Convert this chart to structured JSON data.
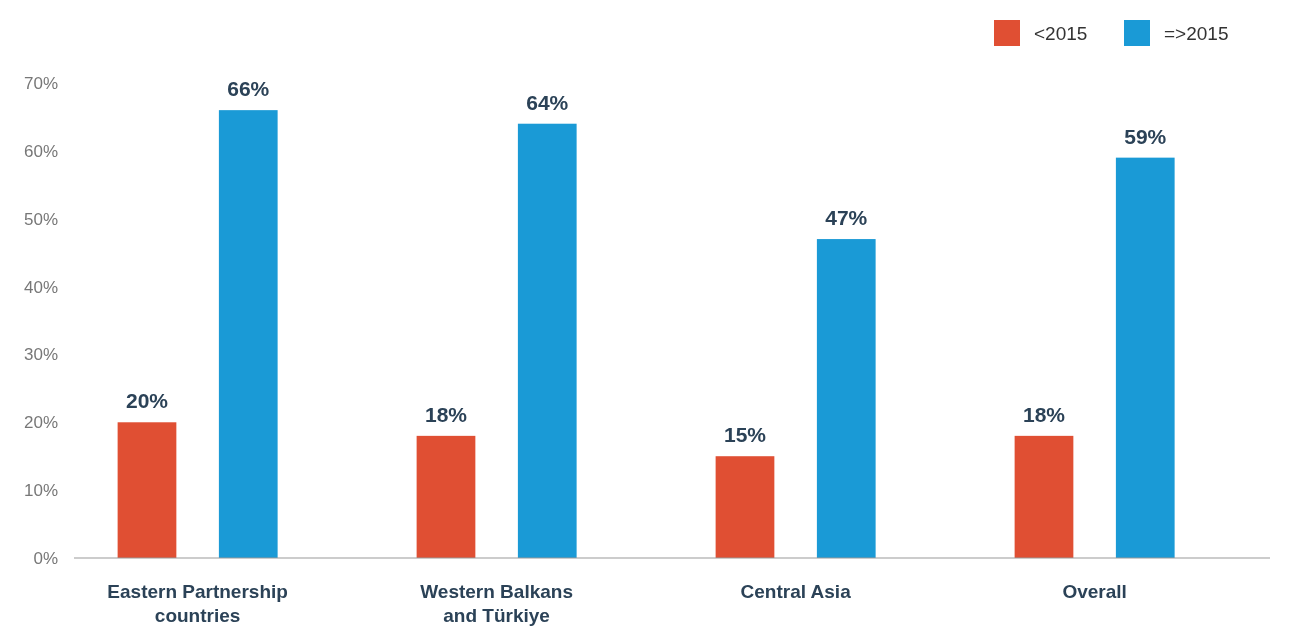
{
  "chart_data": {
    "type": "bar",
    "categories": [
      "Eastern Partnership countries",
      "Western Balkans and Türkiye",
      "Central Asia",
      "Overall"
    ],
    "series": [
      {
        "name": "<2015",
        "color": "#e04f33",
        "values": [
          20,
          18,
          15,
          18
        ],
        "value_labels": [
          "20%",
          "18%",
          "15%",
          "18%"
        ]
      },
      {
        "name": "=>2015",
        "color": "#1a9ad6",
        "values": [
          66,
          64,
          47,
          59
        ],
        "value_labels": [
          "66%",
          "64%",
          "47%",
          "59%"
        ]
      }
    ],
    "ylim": [
      0,
      70
    ],
    "yticks": [
      {
        "value": 0,
        "label": "0%"
      },
      {
        "value": 10,
        "label": "10%"
      },
      {
        "value": 20,
        "label": "20%"
      },
      {
        "value": 30,
        "label": "30%"
      },
      {
        "value": 40,
        "label": "40%"
      },
      {
        "value": 50,
        "label": "50%"
      },
      {
        "value": 60,
        "label": "60%"
      },
      {
        "value": 70,
        "label": "70%"
      }
    ],
    "grid": false,
    "legend": "top right"
  }
}
